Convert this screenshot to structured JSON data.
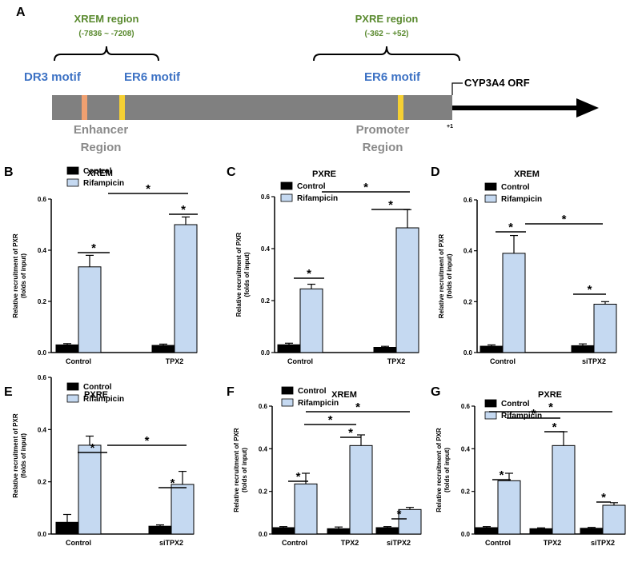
{
  "diagram": {
    "panel": "A",
    "xrem_title": "XREM region",
    "xrem_range": "(-7836 ~ -7208)",
    "pxre_title": "PXRE region",
    "pxre_range": "(-362 ~ +52)",
    "dr3": "DR3 motif",
    "er6_left": "ER6 motif",
    "er6_right": "ER6 motif",
    "enhancer_1": "Enhancer",
    "enhancer_2": "Region",
    "promoter_1": "Promoter",
    "promoter_2": "Region",
    "orf": "CYP3A4 ORF",
    "tss": "+1",
    "colors": {
      "bar": "#808080",
      "dr3": "#f0a070",
      "er6": "#f5d033",
      "motif_text": "#3d72c4",
      "region_text": "#5a8a2f"
    }
  },
  "colors": {
    "control": "#000000",
    "rifampicin": "#c5d9f1"
  },
  "chart_data": [
    {
      "panel": "B",
      "type": "bar",
      "title": "XREM",
      "ylabel": "Relative recruitment of PXR (folds of input)",
      "ylim": [
        0,
        0.6
      ],
      "yticks": [
        "0.0",
        "0.2",
        "0.4",
        "0.6"
      ],
      "categories": [
        "Control",
        "TPX2"
      ],
      "series": [
        {
          "name": "Control",
          "values": [
            0.03,
            0.028
          ],
          "errors": [
            0.005,
            0.005
          ]
        },
        {
          "name": "Rifampicin",
          "values": [
            0.335,
            0.5
          ],
          "errors": [
            0.045,
            0.03
          ]
        }
      ],
      "sig_labels": [
        "*",
        "*",
        "*"
      ]
    },
    {
      "panel": "C",
      "type": "bar",
      "title": "PXRE",
      "ylabel": "Relative recruitment of PXR (folds of input)",
      "ylim": [
        0,
        0.6
      ],
      "yticks": [
        "0.0",
        "0.2",
        "0.4",
        "0.6"
      ],
      "categories": [
        "Control",
        "TPX2"
      ],
      "series": [
        {
          "name": "Control",
          "values": [
            0.03,
            0.02
          ],
          "errors": [
            0.006,
            0.004
          ]
        },
        {
          "name": "Rifampicin",
          "values": [
            0.245,
            0.48
          ],
          "errors": [
            0.018,
            0.07
          ]
        }
      ],
      "sig_labels": [
        "*",
        "*",
        "*"
      ]
    },
    {
      "panel": "D",
      "type": "bar",
      "title": "XREM",
      "ylabel": "Relative recruitment of PXR (folds of input)",
      "ylim": [
        0,
        0.6
      ],
      "yticks": [
        "0.0",
        "0.2",
        "0.4",
        "0.6"
      ],
      "categories": [
        "Control",
        "siTPX2"
      ],
      "series": [
        {
          "name": "Control",
          "values": [
            0.025,
            0.027
          ],
          "errors": [
            0.005,
            0.007
          ]
        },
        {
          "name": "Rifampicin",
          "values": [
            0.39,
            0.19
          ],
          "errors": [
            0.07,
            0.01
          ]
        }
      ],
      "sig_labels": [
        "*",
        "*",
        "*"
      ]
    },
    {
      "panel": "E",
      "type": "bar",
      "title": "PXRE",
      "ylabel": "Relative recruitment of PXR (folds of input)",
      "ylim": [
        0,
        0.6
      ],
      "yticks": [
        "0.0",
        "0.2",
        "0.4",
        "0.6"
      ],
      "categories": [
        "Control",
        "siTPX2"
      ],
      "series": [
        {
          "name": "Control",
          "values": [
            0.045,
            0.03
          ],
          "errors": [
            0.03,
            0.005
          ]
        },
        {
          "name": "Rifampicin",
          "values": [
            0.34,
            0.19
          ],
          "errors": [
            0.035,
            0.05
          ]
        }
      ],
      "sig_labels": [
        "*",
        "*",
        "*"
      ]
    },
    {
      "panel": "F",
      "type": "bar",
      "title": "XREM",
      "ylabel": "Relative recruitment of PXR (folds of input)",
      "ylim": [
        0,
        0.6
      ],
      "yticks": [
        "0.0",
        "0.2",
        "0.4",
        "0.6"
      ],
      "categories": [
        "Control",
        "TPX2",
        "siTPX2"
      ],
      "series": [
        {
          "name": "Control",
          "values": [
            0.03,
            0.025,
            0.03
          ],
          "errors": [
            0.005,
            0.008,
            0.005
          ]
        },
        {
          "name": "Rifampicin",
          "values": [
            0.235,
            0.415,
            0.115
          ],
          "errors": [
            0.05,
            0.05,
            0.01
          ]
        }
      ],
      "sig_labels": [
        "*",
        "*",
        "*",
        "*",
        "*"
      ]
    },
    {
      "panel": "G",
      "type": "bar",
      "title": "PXRE",
      "ylabel": "Relative recruitment of PXR (folds of input)",
      "ylim": [
        0,
        0.6
      ],
      "yticks": [
        "0.0",
        "0.2",
        "0.4",
        "0.6"
      ],
      "categories": [
        "Control",
        "TPX2",
        "siTPX2"
      ],
      "series": [
        {
          "name": "Control",
          "values": [
            0.03,
            0.025,
            0.027
          ],
          "errors": [
            0.005,
            0.004,
            0.004
          ]
        },
        {
          "name": "Rifampicin",
          "values": [
            0.25,
            0.415,
            0.135
          ],
          "errors": [
            0.035,
            0.065,
            0.012
          ]
        }
      ],
      "sig_labels": [
        "*",
        "*",
        "*",
        "*",
        "*"
      ]
    }
  ]
}
